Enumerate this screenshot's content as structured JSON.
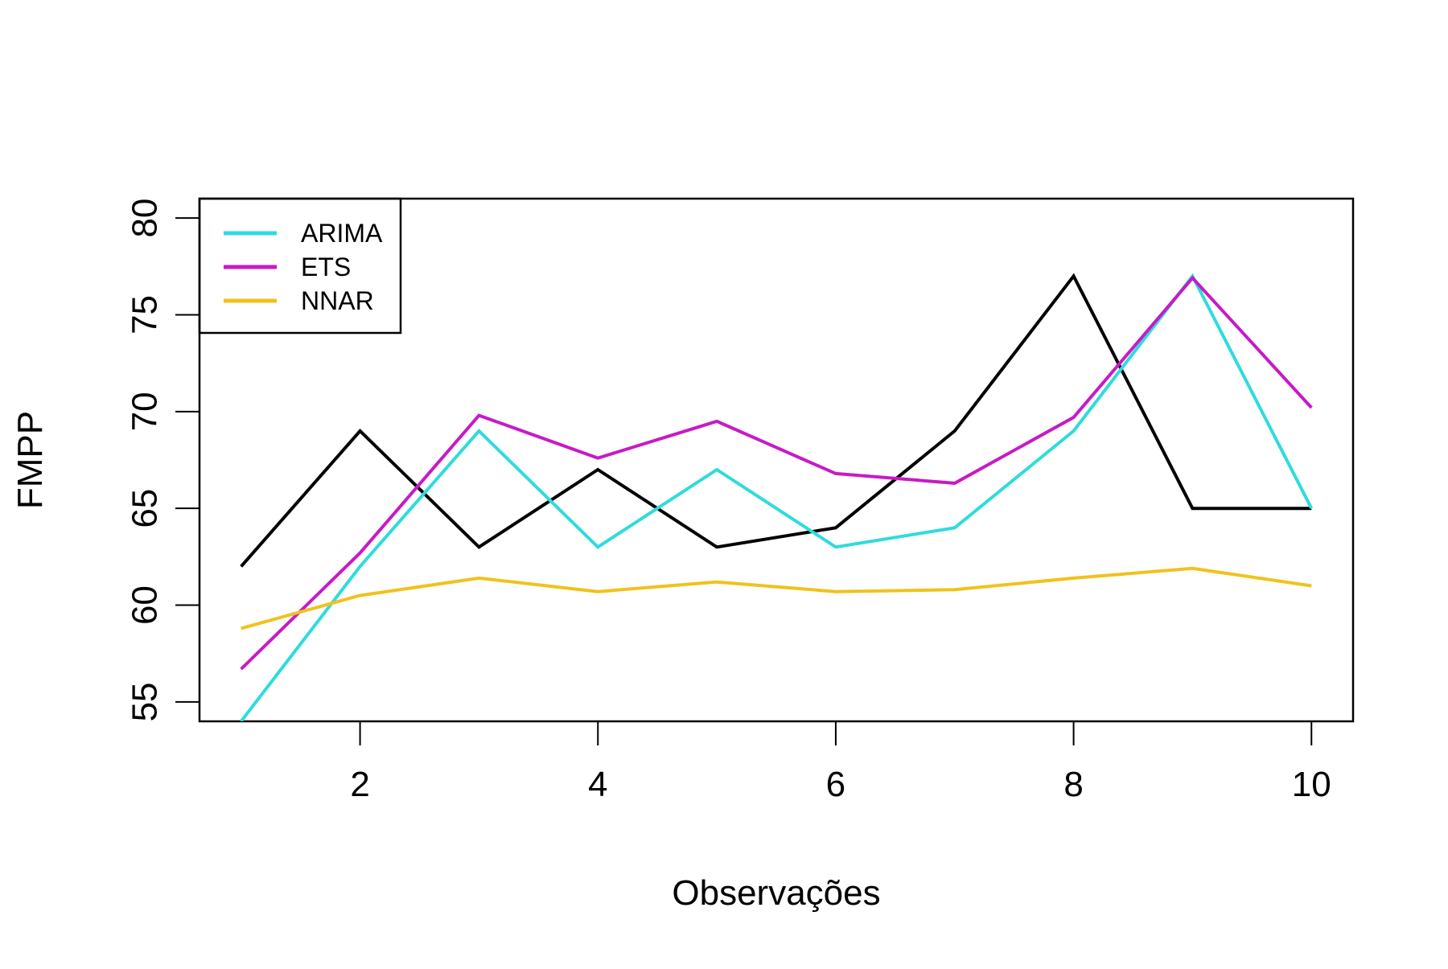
{
  "chart_data": {
    "type": "line",
    "title": "",
    "xlabel": "Observações",
    "ylabel": "FMPP",
    "x": [
      1,
      2,
      3,
      4,
      5,
      6,
      7,
      8,
      9,
      10
    ],
    "xlim": [
      0.65,
      10.35
    ],
    "ylim": [
      54,
      81
    ],
    "xticks": [
      2,
      4,
      6,
      8,
      10
    ],
    "xtick_labels": [
      "2",
      "4",
      "6",
      "8",
      "10"
    ],
    "yticks": [
      55,
      60,
      65,
      70,
      75,
      80
    ],
    "ytick_labels": [
      "55",
      "60",
      "65",
      "70",
      "75",
      "80"
    ],
    "grid": false,
    "legend_position": "top-left",
    "series": [
      {
        "values": [
          62,
          69,
          63,
          67,
          63,
          64,
          69,
          77,
          65,
          65
        ],
        "color": "#000000",
        "in_legend": false
      },
      {
        "name": "ARIMA",
        "values": [
          54,
          62,
          69,
          63,
          67,
          63,
          64,
          69,
          77,
          65
        ],
        "color": "#2EDCDC",
        "in_legend": true
      },
      {
        "name": "ETS",
        "values": [
          56.7,
          62.7,
          69.8,
          67.6,
          69.5,
          66.8,
          66.3,
          69.7,
          76.9,
          70.2
        ],
        "color": "#C71AC7",
        "in_legend": true
      },
      {
        "name": "NNAR",
        "values": [
          58.8,
          60.5,
          61.4,
          60.7,
          61.2,
          60.7,
          60.8,
          61.4,
          61.9,
          61.0
        ],
        "color": "#F0C21C",
        "in_legend": true
      }
    ]
  }
}
